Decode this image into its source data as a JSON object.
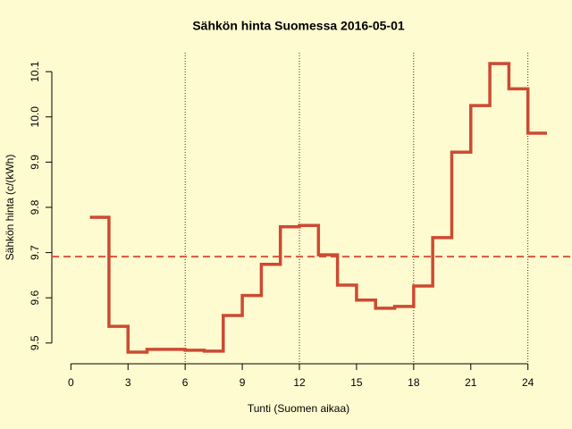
{
  "chart_data": {
    "type": "step",
    "title": "Sähkön hinta Suomessa 2016-05-01",
    "xlabel": "Tunti (Suomen aikaa)",
    "ylabel": "Sähkön hinta (c/(kWh)",
    "x": [
      1,
      2,
      3,
      4,
      5,
      6,
      7,
      8,
      9,
      10,
      11,
      12,
      13,
      14,
      15,
      16,
      17,
      18,
      19,
      20,
      21,
      22,
      23,
      24,
      25
    ],
    "values": [
      9.778,
      9.537,
      9.48,
      9.486,
      9.486,
      9.484,
      9.482,
      9.561,
      9.605,
      9.674,
      9.757,
      9.76,
      9.695,
      9.628,
      9.595,
      9.577,
      9.581,
      9.626,
      9.733,
      9.922,
      10.025,
      10.118,
      10.062,
      9.964,
      9.964
    ],
    "color": "#cc4a33",
    "mean_line": 9.691,
    "mean_color": "#d9553f",
    "vlines": [
      6,
      12,
      18,
      24
    ],
    "xlim": [
      -1,
      25
    ],
    "ylim": [
      9.47,
      10.13
    ],
    "xticks": [
      0,
      3,
      6,
      9,
      12,
      15,
      18,
      21,
      24
    ],
    "yticks": [
      9.5,
      9.6,
      9.7,
      9.8,
      9.9,
      {
        "value": 10,
        "label": "10.0"
      },
      10.1
    ]
  }
}
